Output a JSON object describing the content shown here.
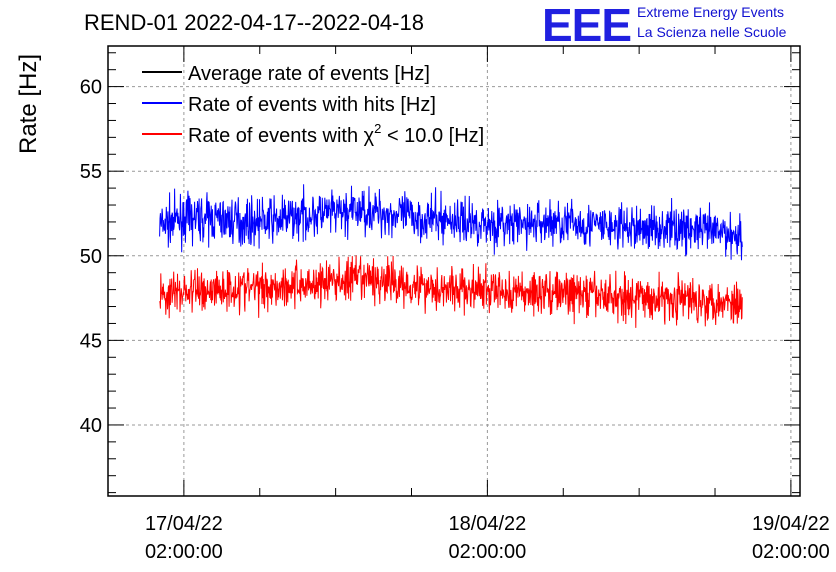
{
  "chart_data": {
    "type": "line",
    "title": "REND-01 2022-04-17--2022-04-18",
    "ylabel": "Rate [Hz]",
    "xlabel": "",
    "ylim": [
      35.8,
      62.4
    ],
    "xlim": [
      -0.25,
      2.03
    ],
    "yticks": [
      40,
      45,
      50,
      55,
      60
    ],
    "x_tick_labels": [
      {
        "x": 0,
        "line1": "17/04/22",
        "line2": "02:00:00"
      },
      {
        "x": 1,
        "line1": "18/04/22",
        "line2": "02:00:00"
      },
      {
        "x": 2,
        "line1": "19/04/22",
        "line2": "02:00:00"
      }
    ],
    "x_unit": "days since 17/04/22 02:00:00",
    "grid": true,
    "legend_position": "top-left",
    "series": [
      {
        "name": "Average rate of events [Hz]",
        "color": "#000000",
        "x": [],
        "values": []
      },
      {
        "name": "Rate of events with hits [Hz]",
        "color": "#0000ff",
        "x": [
          -0.08,
          0.0,
          0.1,
          0.2,
          0.3,
          0.4,
          0.5,
          0.6,
          0.7,
          0.8,
          0.9,
          1.0,
          1.1,
          1.2,
          1.3,
          1.4,
          1.5,
          1.6,
          1.7,
          1.8,
          1.84
        ],
        "values": [
          51.8,
          52.2,
          52.2,
          52.0,
          52.1,
          52.4,
          52.5,
          52.7,
          52.4,
          52.2,
          52.1,
          51.9,
          51.8,
          52.0,
          51.9,
          51.7,
          51.6,
          51.7,
          51.5,
          51.3,
          51.2
        ],
        "noise_amplitude": 1.2
      },
      {
        "name": "Rate of events with χ2 < 10.0 [Hz]",
        "color": "#ff0000",
        "x": [
          -0.08,
          0.0,
          0.1,
          0.2,
          0.3,
          0.4,
          0.5,
          0.6,
          0.7,
          0.8,
          0.9,
          1.0,
          1.1,
          1.2,
          1.3,
          1.4,
          1.5,
          1.6,
          1.7,
          1.8,
          1.84
        ],
        "values": [
          47.6,
          47.9,
          48.0,
          48.1,
          48.2,
          48.3,
          48.5,
          48.6,
          48.4,
          48.2,
          48.0,
          47.9,
          47.8,
          47.9,
          47.7,
          47.6,
          47.5,
          47.5,
          47.4,
          47.3,
          47.2
        ],
        "noise_amplitude": 1.2
      }
    ]
  },
  "legend": {
    "avg_label": "Average rate of events [Hz]",
    "hits_label": "Rate of events with hits [Hz]",
    "chi2_label_prefix": "Rate of events with χ",
    "chi2_label_sup": "2",
    "chi2_label_suffix": " < 10.0 [Hz]"
  },
  "logo": {
    "mark": "EEE",
    "line1": "Extreme Energy Events",
    "line2": "La Scienza nelle Scuole",
    "color": "#2020e0"
  }
}
